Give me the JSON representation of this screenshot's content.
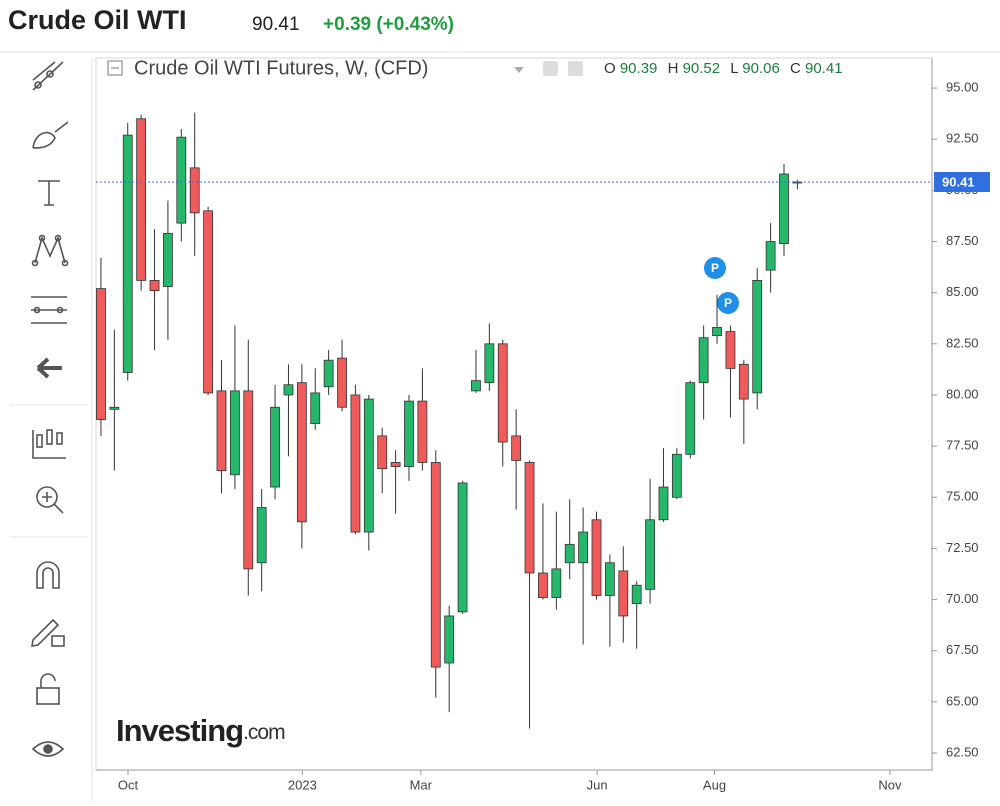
{
  "header": {
    "title": "Crude Oil WTI",
    "change": "+0.39 (+0.43%)"
  },
  "legend": {
    "name": "Crude Oil WTI Futures, W, (CFD)",
    "o": "O",
    "h": "H",
    "l": "L",
    "c": "C"
  },
  "watermark": {
    "brand": "Investing",
    "suffix": ".com"
  },
  "markers": [
    "P",
    "P"
  ],
  "chart_data": {
    "type": "candlestick",
    "up_color": "#26b86a",
    "down_color": "#ef5b5b",
    "price_line_color": "#2f6fe0",
    "open": [
      85.2,
      79.3,
      81.1,
      93.5,
      85.6,
      85.3,
      88.4,
      91.1,
      89.0,
      80.2,
      76.1,
      80.2,
      71.8,
      75.5,
      80.0,
      80.6,
      78.6,
      80.4,
      81.8,
      80.0,
      73.3,
      78.0,
      76.7,
      76.5,
      79.7,
      76.7,
      66.9,
      69.4,
      80.2,
      80.6,
      82.5,
      78.0,
      76.7,
      71.3,
      70.1,
      71.8,
      71.8,
      73.9,
      70.2,
      71.4,
      69.8,
      70.5,
      73.9,
      75.0,
      77.1,
      80.6,
      82.9,
      83.1,
      81.5,
      80.1,
      86.1,
      87.4,
      90.39
    ],
    "high": [
      86.7,
      83.2,
      93.3,
      93.7,
      88.1,
      89.5,
      93.0,
      93.8,
      89.2,
      81.7,
      83.4,
      82.7,
      75.4,
      80.5,
      81.5,
      81.5,
      81.3,
      82.2,
      82.7,
      80.5,
      80.0,
      78.4,
      77.3,
      80.0,
      81.3,
      77.3,
      69.7,
      75.8,
      82.2,
      83.5,
      82.7,
      79.3,
      76.8,
      74.7,
      74.3,
      74.9,
      74.5,
      74.3,
      72.2,
      72.6,
      70.9,
      75.9,
      77.4,
      77.4,
      80.7,
      83.4,
      84.9,
      83.4,
      81.7,
      86.2,
      88.4,
      91.3,
      90.52
    ],
    "low": [
      78.0,
      76.3,
      80.7,
      85.1,
      82.2,
      82.7,
      87.5,
      86.8,
      80.0,
      75.2,
      75.4,
      70.2,
      70.4,
      74.9,
      77.0,
      72.5,
      78.3,
      80.0,
      79.2,
      73.2,
      72.4,
      75.2,
      74.2,
      75.8,
      76.3,
      65.2,
      64.5,
      69.3,
      80.1,
      80.2,
      76.5,
      74.4,
      63.7,
      70.0,
      69.5,
      71.0,
      67.8,
      70.0,
      67.7,
      67.9,
      67.6,
      69.8,
      73.8,
      74.9,
      76.9,
      78.8,
      82.5,
      78.9,
      77.6,
      79.3,
      85.0,
      86.8,
      90.06
    ],
    "close": [
      78.8,
      79.4,
      92.7,
      85.6,
      85.1,
      87.9,
      92.6,
      88.9,
      80.1,
      76.3,
      80.2,
      71.5,
      74.5,
      79.4,
      80.5,
      73.8,
      80.1,
      81.7,
      79.4,
      73.3,
      79.8,
      76.4,
      76.5,
      79.7,
      76.7,
      66.7,
      69.2,
      75.7,
      80.7,
      82.5,
      77.7,
      76.8,
      71.3,
      70.1,
      71.5,
      72.7,
      73.3,
      70.2,
      71.8,
      69.2,
      70.7,
      73.9,
      75.5,
      77.1,
      80.6,
      82.8,
      83.3,
      81.3,
      79.8,
      85.6,
      87.5,
      90.8,
      90.41
    ],
    "xlim": [
      -0.37,
      62.05
    ],
    "xticks": [
      {
        "value": 2.02,
        "label": "Oct"
      },
      {
        "value": 15.04,
        "label": "2023"
      },
      {
        "value": 23.88,
        "label": "Mar"
      },
      {
        "value": 37.05,
        "label": "Jun"
      },
      {
        "value": 45.81,
        "label": "Aug"
      },
      {
        "value": 58.91,
        "label": "Nov"
      }
    ],
    "ylim": [
      61.67,
      96.47
    ],
    "yticks": [
      {
        "value": 62.5,
        "label": "62.50"
      },
      {
        "value": 65,
        "label": "65.00"
      },
      {
        "value": 67.5,
        "label": "67.50"
      },
      {
        "value": 70,
        "label": "70.00"
      },
      {
        "value": 72.5,
        "label": "72.50"
      },
      {
        "value": 75,
        "label": "75.00"
      },
      {
        "value": 77.5,
        "label": "77.50"
      },
      {
        "value": 80,
        "label": "80.00"
      },
      {
        "value": 82.5,
        "label": "82.50"
      },
      {
        "value": 85,
        "label": "85.00"
      },
      {
        "value": 87.5,
        "label": "87.50"
      },
      {
        "value": 90,
        "label": "90.00"
      },
      {
        "value": 92.5,
        "label": "92.50"
      },
      {
        "value": 95,
        "label": "95.00"
      }
    ]
  }
}
